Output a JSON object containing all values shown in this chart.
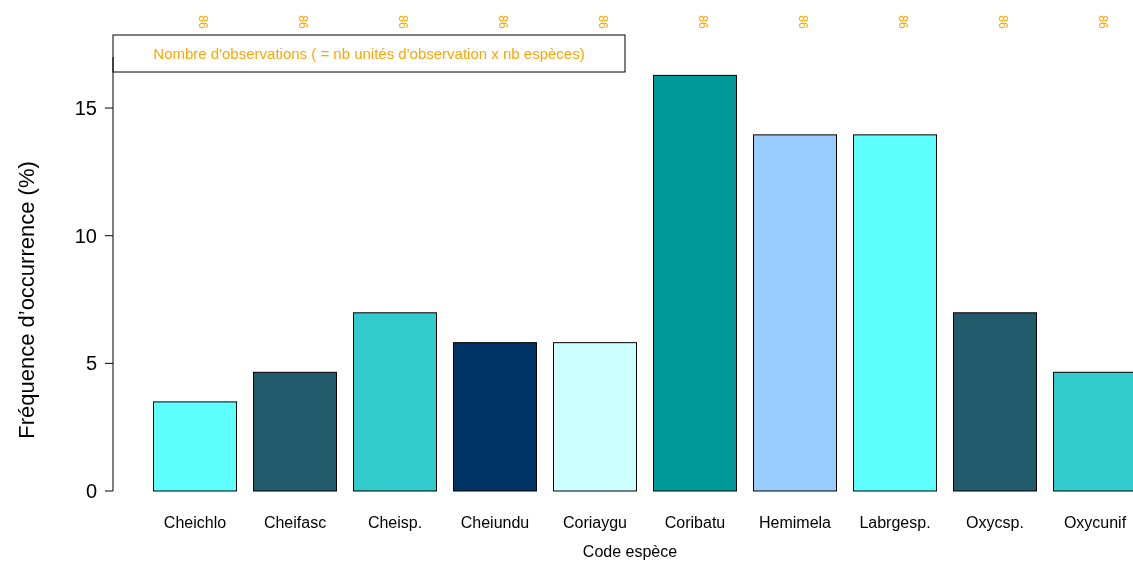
{
  "chart_data": {
    "type": "bar",
    "xlabel": "Code espèce",
    "ylabel": "Fréquence d’occurrence (%)",
    "categories": [
      "Cheichlo",
      "Cheifasc",
      "Cheisp.",
      "Cheiundu",
      "Coriaygu",
      "Coribatu",
      "Hemimela",
      "Labrgesp.",
      "Oxycsp.",
      "Oxycunif"
    ],
    "values": [
      3.49,
      4.65,
      6.98,
      5.81,
      5.81,
      16.28,
      13.95,
      13.95,
      6.98,
      4.65
    ],
    "colors": [
      "#5effff",
      "#215a6a",
      "#33cccc",
      "#003366",
      "#ccffff",
      "#009999",
      "#99ccff",
      "#5effff",
      "#215a6a",
      "#33cccc"
    ],
    "ylim": [
      0,
      17
    ],
    "yticks": [
      0,
      5,
      10,
      15
    ],
    "grid": false,
    "annotations": [
      "86",
      "86",
      "86",
      "86",
      "86",
      "86",
      "86",
      "86",
      "86",
      "86",
      "Nombre d'observations ( = nb unités d'observation x nb espèces)"
    ]
  }
}
